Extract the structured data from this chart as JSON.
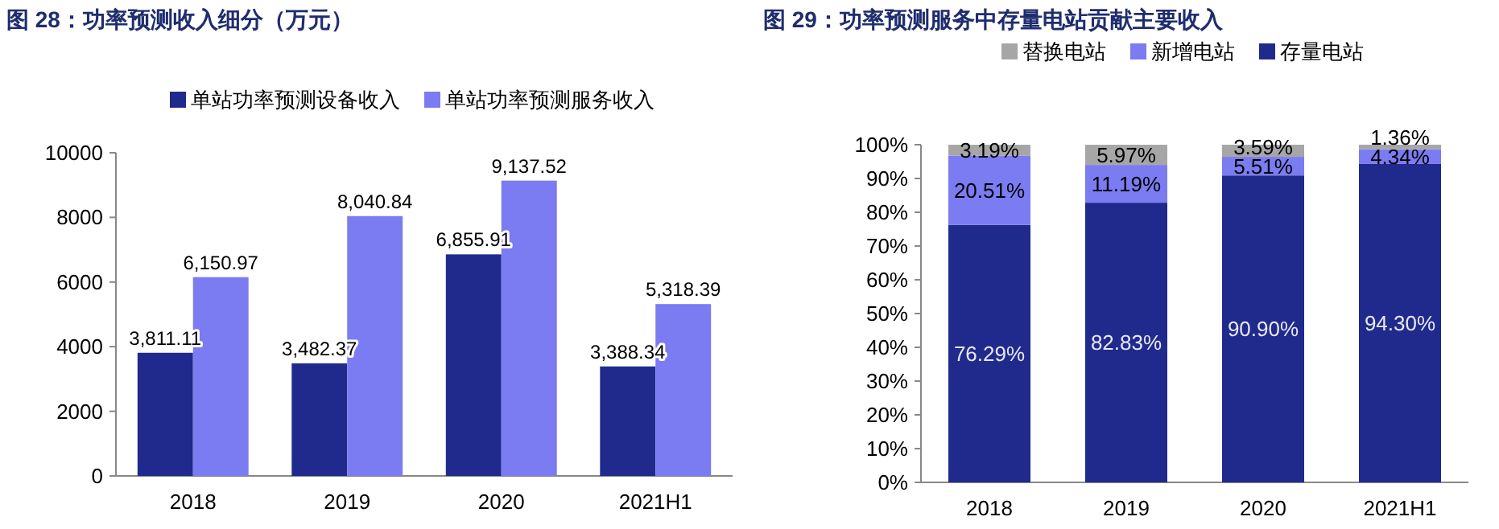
{
  "chart_data": [
    {
      "type": "bar",
      "title": "图 28：功率预测收入细分（万元）",
      "categories": [
        "2018",
        "2019",
        "2020",
        "2021H1"
      ],
      "series": [
        {
          "name": "单站功率预测设备收入",
          "color": "#1f2a8c",
          "values": [
            3811.11,
            3482.37,
            6855.91,
            3388.34
          ],
          "value_labels": [
            "3,811.11",
            "3,482.37",
            "6,855.91",
            "3,388.34"
          ]
        },
        {
          "name": "单站功率预测服务收入",
          "color": "#7b7bf2",
          "values": [
            6150.97,
            8040.84,
            9137.52,
            5318.39
          ],
          "value_labels": [
            "6,150.97",
            "8,040.84",
            "9,137.52",
            "5,318.39"
          ]
        }
      ],
      "ylim": [
        0,
        10000
      ],
      "yticks": [
        0,
        2000,
        4000,
        6000,
        8000,
        10000
      ],
      "legend": "top",
      "grid": false
    },
    {
      "type": "bar",
      "title": "图 29：功率预测服务中存量电站贡献主要收入",
      "categories": [
        "2018",
        "2019",
        "2020",
        "2021H1"
      ],
      "stacked": true,
      "series": [
        {
          "name": "存量电站",
          "color": "#1f2a8c",
          "values": [
            76.29,
            82.83,
            90.9,
            94.3
          ],
          "value_labels": [
            "76.29%",
            "82.83%",
            "90.90%",
            "94.30%"
          ]
        },
        {
          "name": "新增电站",
          "color": "#7b7bf2",
          "values": [
            20.51,
            11.19,
            5.51,
            4.34
          ],
          "value_labels": [
            "20.51%",
            "11.19%",
            "5.51%",
            "4.34%"
          ]
        },
        {
          "name": "替换电站",
          "color": "#a6a6a6",
          "values": [
            3.19,
            5.97,
            3.59,
            1.36
          ],
          "value_labels": [
            "3.19%",
            "5.97%",
            "3.59%",
            "1.36%"
          ]
        }
      ],
      "ylim": [
        0,
        100
      ],
      "yticks": [
        {
          "value": 0,
          "label": "0%"
        },
        {
          "value": 10,
          "label": "10%"
        },
        {
          "value": 20,
          "label": "20%"
        },
        {
          "value": 30,
          "label": "30%"
        },
        {
          "value": 40,
          "label": "40%"
        },
        {
          "value": 50,
          "label": "50%"
        },
        {
          "value": 60,
          "label": "60%"
        },
        {
          "value": 70,
          "label": "70%"
        },
        {
          "value": 80,
          "label": "80%"
        },
        {
          "value": 90,
          "label": "90%"
        },
        {
          "value": 100,
          "label": "100%"
        }
      ],
      "legend": "top",
      "grid": false
    }
  ]
}
